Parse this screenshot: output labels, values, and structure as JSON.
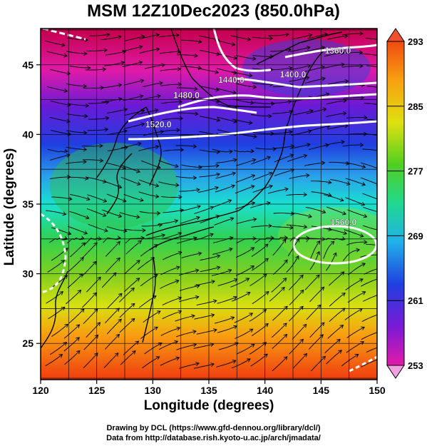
{
  "title": "MSM 12Z10Dec2023 (850.0hPa)",
  "xaxis": {
    "label": "Longitude (degrees)",
    "min": 120,
    "max": 150,
    "ticks": [
      120,
      125,
      130,
      135,
      140,
      145,
      150
    ],
    "tick_labels": [
      "120",
      "125",
      "130",
      "135",
      "140",
      "145",
      "150"
    ]
  },
  "yaxis": {
    "label": "Latitude  (degrees)",
    "min": 22.4,
    "max": 47.6,
    "ticks": [
      25,
      30,
      35,
      40,
      45
    ],
    "tick_labels": [
      "25",
      "30",
      "35",
      "40",
      "45"
    ]
  },
  "colorbar": {
    "min": 253,
    "max": 293,
    "tick_values": [
      253,
      261,
      269,
      277,
      285,
      293
    ],
    "tick_labels": [
      "253",
      "261",
      "269",
      "277",
      "285",
      "293"
    ]
  },
  "contours": [
    {
      "label": "1360.0",
      "lon": 146.5,
      "lat": 45.8
    },
    {
      "label": "1400.0",
      "lon": 142.5,
      "lat": 44.1
    },
    {
      "label": "1440.0",
      "lon": 137.0,
      "lat": 43.7
    },
    {
      "label": "1480.0",
      "lon": 133.0,
      "lat": 42.6
    },
    {
      "label": "1520.0",
      "lon": 130.5,
      "lat": 40.5
    },
    {
      "label": "1560.0",
      "lon": 147.0,
      "lat": 33.5
    }
  ],
  "credits": {
    "line1": "Drawing by DCL (https://www.gfd-dennou.org/library/dcl/)",
    "line2": "Data from http://database.rish.kyoto-u.ac.jp/arch/jmadata/"
  }
}
